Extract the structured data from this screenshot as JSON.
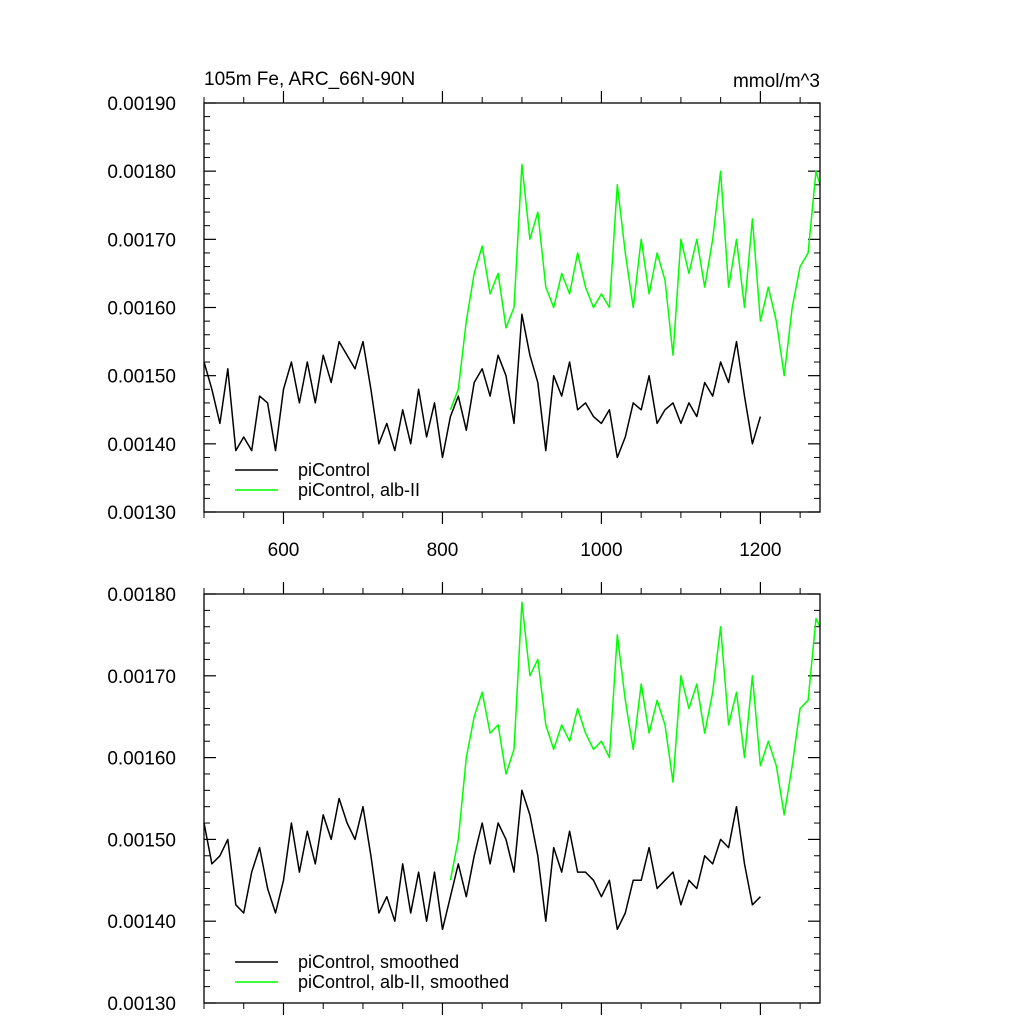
{
  "chart_data": [
    {
      "type": "line",
      "title": "105m Fe, ARC_66N-90N",
      "units": "mmol/m^3",
      "xlabel": "",
      "ylabel": "",
      "xlim": [
        500,
        1275
      ],
      "ylim": [
        0.0013,
        0.0019
      ],
      "x_ticks": [
        600,
        800,
        1000,
        1200
      ],
      "x_tick_labels": [
        "600",
        "800",
        "1000",
        "1200"
      ],
      "y_ticks": [
        0.0013,
        0.0014,
        0.0015,
        0.0016,
        0.0017,
        0.0018,
        0.0019
      ],
      "y_tick_labels": [
        "0.00130",
        "0.00140",
        "0.00150",
        "0.00160",
        "0.00170",
        "0.00180",
        "0.00190"
      ],
      "grid": false,
      "legend_position": "bottom-left",
      "series": [
        {
          "name": "piControl",
          "color": "#000000",
          "x": [
            500,
            510,
            520,
            530,
            540,
            550,
            560,
            570,
            580,
            590,
            600,
            610,
            620,
            630,
            640,
            650,
            660,
            670,
            680,
            690,
            700,
            710,
            720,
            730,
            740,
            750,
            760,
            770,
            780,
            790,
            800,
            810,
            820,
            830,
            840,
            850,
            860,
            870,
            880,
            890,
            900,
            910,
            920,
            930,
            940,
            950,
            960,
            970,
            980,
            990,
            1000,
            1010,
            1020,
            1030,
            1040,
            1050,
            1060,
            1070,
            1080,
            1090,
            1100,
            1110,
            1120,
            1130,
            1140,
            1150,
            1160,
            1170,
            1180,
            1190,
            1200
          ],
          "y": [
            0.00152,
            0.00148,
            0.00143,
            0.00151,
            0.00139,
            0.00141,
            0.00139,
            0.00147,
            0.00146,
            0.00139,
            0.00148,
            0.00152,
            0.00146,
            0.00152,
            0.00146,
            0.00153,
            0.00149,
            0.00155,
            0.00153,
            0.00151,
            0.00155,
            0.00148,
            0.0014,
            0.00143,
            0.00139,
            0.00145,
            0.0014,
            0.00148,
            0.00141,
            0.00146,
            0.00138,
            0.00144,
            0.00147,
            0.00142,
            0.00149,
            0.00151,
            0.00147,
            0.00153,
            0.0015,
            0.00143,
            0.00159,
            0.00153,
            0.00149,
            0.00139,
            0.0015,
            0.00147,
            0.00152,
            0.00145,
            0.00146,
            0.00144,
            0.00143,
            0.00145,
            0.00138,
            0.00141,
            0.00146,
            0.00145,
            0.0015,
            0.00143,
            0.00145,
            0.00146,
            0.00143,
            0.00146,
            0.00144,
            0.00149,
            0.00147,
            0.00152,
            0.00149,
            0.00155,
            0.00147,
            0.0014,
            0.00144
          ]
        },
        {
          "name": "piControl, alb-II",
          "color": "#00ff00",
          "x": [
            810,
            820,
            830,
            840,
            850,
            860,
            870,
            880,
            890,
            900,
            910,
            920,
            930,
            940,
            950,
            960,
            970,
            980,
            990,
            1000,
            1010,
            1020,
            1030,
            1040,
            1050,
            1060,
            1070,
            1080,
            1090,
            1100,
            1110,
            1120,
            1130,
            1140,
            1150,
            1160,
            1170,
            1180,
            1190,
            1200,
            1210,
            1220,
            1230,
            1240,
            1250,
            1260,
            1270,
            1275
          ],
          "y": [
            0.00145,
            0.00148,
            0.00158,
            0.00165,
            0.00169,
            0.00162,
            0.00165,
            0.00157,
            0.0016,
            0.00181,
            0.0017,
            0.00174,
            0.00163,
            0.0016,
            0.00165,
            0.00162,
            0.00168,
            0.00163,
            0.0016,
            0.00162,
            0.0016,
            0.00178,
            0.00168,
            0.0016,
            0.0017,
            0.00162,
            0.00168,
            0.00164,
            0.00153,
            0.0017,
            0.00165,
            0.0017,
            0.00163,
            0.0017,
            0.0018,
            0.00163,
            0.0017,
            0.0016,
            0.00173,
            0.00158,
            0.00163,
            0.00158,
            0.0015,
            0.0016,
            0.00166,
            0.00168,
            0.0018,
            0.00178
          ]
        }
      ]
    },
    {
      "type": "line",
      "title": "",
      "xlabel": "",
      "ylabel": "",
      "xlim": [
        500,
        1275
      ],
      "ylim": [
        0.0013,
        0.0018
      ],
      "x_ticks": [
        600,
        800,
        1000,
        1200
      ],
      "x_tick_labels": [],
      "y_ticks": [
        0.0013,
        0.0014,
        0.0015,
        0.0016,
        0.0017,
        0.0018
      ],
      "y_tick_labels": [
        "0.00130",
        "0.00140",
        "0.00150",
        "0.00160",
        "0.00170",
        "0.00180"
      ],
      "grid": false,
      "legend_position": "bottom-left",
      "series": [
        {
          "name": "piControl, smoothed",
          "color": "#000000",
          "x": [
            500,
            510,
            520,
            530,
            540,
            550,
            560,
            570,
            580,
            590,
            600,
            610,
            620,
            630,
            640,
            650,
            660,
            670,
            680,
            690,
            700,
            710,
            720,
            730,
            740,
            750,
            760,
            770,
            780,
            790,
            800,
            810,
            820,
            830,
            840,
            850,
            860,
            870,
            880,
            890,
            900,
            910,
            920,
            930,
            940,
            950,
            960,
            970,
            980,
            990,
            1000,
            1010,
            1020,
            1030,
            1040,
            1050,
            1060,
            1070,
            1080,
            1090,
            1100,
            1110,
            1120,
            1130,
            1140,
            1150,
            1160,
            1170,
            1180,
            1190,
            1200
          ],
          "y": [
            0.00152,
            0.00147,
            0.00148,
            0.0015,
            0.00142,
            0.00141,
            0.00146,
            0.00149,
            0.00144,
            0.00141,
            0.00145,
            0.00152,
            0.00146,
            0.00151,
            0.00147,
            0.00153,
            0.0015,
            0.00155,
            0.00152,
            0.0015,
            0.00154,
            0.00148,
            0.00141,
            0.00143,
            0.0014,
            0.00147,
            0.00141,
            0.00146,
            0.0014,
            0.00146,
            0.00139,
            0.00143,
            0.00147,
            0.00143,
            0.00148,
            0.00152,
            0.00147,
            0.00152,
            0.0015,
            0.00146,
            0.00156,
            0.00153,
            0.00148,
            0.0014,
            0.00149,
            0.00146,
            0.00151,
            0.00146,
            0.00146,
            0.00145,
            0.00143,
            0.00145,
            0.00139,
            0.00141,
            0.00145,
            0.00145,
            0.00149,
            0.00144,
            0.00145,
            0.00146,
            0.00142,
            0.00145,
            0.00144,
            0.00148,
            0.00147,
            0.0015,
            0.00149,
            0.00154,
            0.00147,
            0.00142,
            0.00143
          ]
        },
        {
          "name": "piControl, alb-II, smoothed",
          "color": "#00ff00",
          "x": [
            810,
            820,
            830,
            840,
            850,
            860,
            870,
            880,
            890,
            900,
            910,
            920,
            930,
            940,
            950,
            960,
            970,
            980,
            990,
            1000,
            1010,
            1020,
            1030,
            1040,
            1050,
            1060,
            1070,
            1080,
            1090,
            1100,
            1110,
            1120,
            1130,
            1140,
            1150,
            1160,
            1170,
            1180,
            1190,
            1200,
            1210,
            1220,
            1230,
            1240,
            1250,
            1260,
            1270,
            1275
          ],
          "y": [
            0.00145,
            0.0015,
            0.0016,
            0.00165,
            0.00168,
            0.00163,
            0.00164,
            0.00158,
            0.00161,
            0.00179,
            0.0017,
            0.00172,
            0.00164,
            0.00161,
            0.00164,
            0.00162,
            0.00166,
            0.00163,
            0.00161,
            0.00162,
            0.0016,
            0.00175,
            0.00167,
            0.00161,
            0.00169,
            0.00163,
            0.00167,
            0.00164,
            0.00157,
            0.0017,
            0.00166,
            0.00169,
            0.00163,
            0.00168,
            0.00176,
            0.00164,
            0.00168,
            0.0016,
            0.0017,
            0.00159,
            0.00162,
            0.00159,
            0.00153,
            0.00159,
            0.00166,
            0.00167,
            0.00177,
            0.00176
          ]
        }
      ]
    }
  ]
}
